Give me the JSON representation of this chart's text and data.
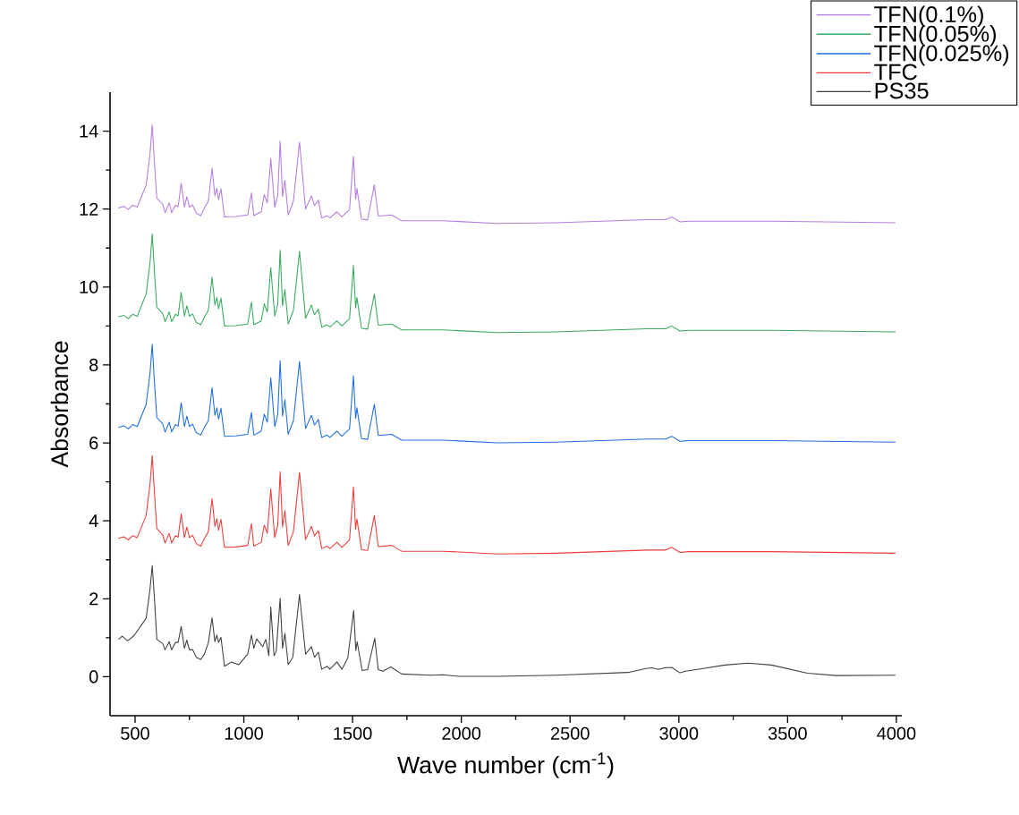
{
  "chart_data": {
    "type": "line",
    "xlabel": "Wave number (cm$^{-1}$)",
    "ylabel": "Absorbance",
    "xlim": [
      385,
      4025
    ],
    "ylim": [
      -1,
      15
    ],
    "xticks": [
      500,
      1000,
      1500,
      2000,
      2500,
      3000,
      3500,
      4000
    ],
    "yticks": [
      0,
      2,
      4,
      6,
      8,
      10,
      12,
      14
    ],
    "legend": "top right",
    "x": [
      424,
      448,
      469,
      489,
      510,
      551,
      569,
      579,
      589,
      600,
      627,
      638,
      657,
      668,
      686,
      698,
      712,
      727,
      738,
      750,
      764,
      782,
      802,
      819,
      837,
      854,
      867,
      876,
      884,
      895,
      911,
      963,
      1018,
      1035,
      1046,
      1080,
      1094,
      1108,
      1124,
      1142,
      1156,
      1167,
      1178,
      1189,
      1204,
      1228,
      1256,
      1284,
      1311,
      1325,
      1343,
      1358,
      1383,
      1396,
      1428,
      1451,
      1486,
      1504,
      1514,
      1520,
      1541,
      1569,
      1600,
      1618,
      1680,
      1726,
      1916,
      2166,
      2436,
      2856,
      2939,
      2967,
      3005,
      3046,
      3426,
      3996
    ],
    "series": [
      {
        "name": "TFN(0.1%)",
        "color": "#b57ee0",
        "values": [
          12.03,
          12.07,
          11.99,
          12.1,
          12.05,
          12.62,
          13.43,
          14.16,
          13.2,
          12.28,
          12.12,
          11.91,
          12.16,
          11.91,
          12.1,
          12.06,
          12.66,
          12.05,
          12.32,
          12.05,
          12.11,
          11.89,
          11.83,
          12.03,
          12.2,
          13.05,
          12.34,
          12.53,
          12.24,
          12.52,
          11.8,
          11.81,
          11.85,
          12.41,
          11.83,
          11.93,
          12.37,
          12.16,
          13.3,
          12.05,
          12.36,
          13.74,
          12.32,
          12.74,
          11.85,
          12.2,
          13.72,
          12.0,
          12.34,
          12.09,
          12.23,
          11.77,
          11.83,
          11.77,
          11.93,
          11.8,
          11.99,
          13.35,
          12.26,
          12.53,
          11.74,
          11.72,
          12.62,
          11.82,
          11.85,
          11.7,
          11.7,
          11.63,
          11.65,
          11.73,
          11.73,
          11.8,
          11.67,
          11.69,
          11.69,
          11.65
        ]
      },
      {
        "name": "TFN(0.05%)",
        "color": "#3aaa5f",
        "values": [
          9.23,
          9.27,
          9.19,
          9.3,
          9.25,
          9.82,
          10.63,
          11.36,
          10.4,
          9.48,
          9.32,
          9.11,
          9.36,
          9.11,
          9.3,
          9.26,
          9.86,
          9.25,
          9.52,
          9.25,
          9.31,
          9.09,
          9.03,
          9.23,
          9.4,
          10.25,
          9.54,
          9.73,
          9.44,
          9.72,
          9.0,
          9.01,
          9.05,
          9.61,
          9.03,
          9.13,
          9.57,
          9.36,
          10.5,
          9.25,
          9.56,
          10.94,
          9.52,
          9.94,
          9.05,
          9.4,
          10.92,
          9.2,
          9.54,
          9.29,
          9.43,
          8.97,
          9.03,
          8.97,
          9.13,
          9.0,
          9.19,
          10.55,
          9.46,
          9.73,
          8.94,
          8.92,
          9.82,
          9.02,
          9.05,
          8.9,
          8.9,
          8.83,
          8.85,
          8.93,
          8.93,
          9.0,
          8.87,
          8.89,
          8.89,
          8.85
        ]
      },
      {
        "name": "TFN(0.025%)",
        "color": "#1f6fe0",
        "values": [
          6.4,
          6.44,
          6.36,
          6.47,
          6.42,
          6.99,
          7.8,
          8.53,
          7.57,
          6.65,
          6.49,
          6.28,
          6.53,
          6.28,
          6.47,
          6.43,
          7.03,
          6.42,
          6.69,
          6.42,
          6.48,
          6.26,
          6.2,
          6.4,
          6.57,
          7.42,
          6.71,
          6.9,
          6.61,
          6.89,
          6.17,
          6.18,
          6.22,
          6.78,
          6.2,
          6.3,
          6.74,
          6.53,
          7.67,
          6.42,
          6.73,
          8.11,
          6.69,
          7.11,
          6.22,
          6.57,
          8.09,
          6.37,
          6.71,
          6.46,
          6.6,
          6.14,
          6.2,
          6.14,
          6.3,
          6.17,
          6.36,
          7.72,
          6.63,
          6.9,
          6.11,
          6.09,
          6.99,
          6.19,
          6.22,
          6.07,
          6.07,
          6.0,
          6.02,
          6.1,
          6.1,
          6.17,
          6.04,
          6.06,
          6.06,
          6.02
        ]
      },
      {
        "name": "TFC",
        "color": "#f03c3c",
        "values": [
          3.55,
          3.59,
          3.51,
          3.62,
          3.57,
          4.14,
          4.95,
          5.68,
          4.72,
          3.8,
          3.64,
          3.43,
          3.68,
          3.43,
          3.62,
          3.58,
          4.18,
          3.57,
          3.84,
          3.57,
          3.63,
          3.41,
          3.35,
          3.55,
          3.72,
          4.57,
          3.86,
          4.05,
          3.76,
          4.04,
          3.32,
          3.33,
          3.37,
          3.93,
          3.35,
          3.45,
          3.89,
          3.68,
          4.82,
          3.57,
          3.88,
          5.26,
          3.84,
          4.26,
          3.37,
          3.72,
          5.24,
          3.52,
          3.86,
          3.61,
          3.75,
          3.29,
          3.35,
          3.29,
          3.45,
          3.32,
          3.51,
          4.87,
          3.78,
          4.05,
          3.26,
          3.24,
          4.14,
          3.34,
          3.37,
          3.22,
          3.22,
          3.15,
          3.17,
          3.25,
          3.25,
          3.32,
          3.19,
          3.21,
          3.21,
          3.17
        ]
      },
      {
        "name": "PS35",
        "color": "#404040",
        "x": [
          424,
          441,
          466,
          496,
          551,
          569,
          579,
          589,
          600,
          627,
          638,
          657,
          668,
          686,
          698,
          712,
          727,
          738,
          750,
          764,
          782,
          802,
          819,
          837,
          854,
          867,
          876,
          884,
          895,
          911,
          943,
          977,
          1018,
          1035,
          1046,
          1059,
          1087,
          1101,
          1115,
          1124,
          1139,
          1149,
          1167,
          1178,
          1189,
          1204,
          1225,
          1256,
          1284,
          1311,
          1325,
          1343,
          1358,
          1383,
          1396,
          1428,
          1451,
          1478,
          1505,
          1515,
          1521,
          1544,
          1569,
          1602,
          1618,
          1639,
          1676,
          1726,
          1858,
          1916,
          1990,
          2166,
          2436,
          2766,
          2848,
          2876,
          2906,
          2935,
          2967,
          3005,
          3030,
          3112,
          3211,
          3319,
          3426,
          3591,
          3723,
          3996
        ],
        "values": [
          0.96,
          1.04,
          0.92,
          1.06,
          1.5,
          2.26,
          2.85,
          2.03,
          0.96,
          0.85,
          0.69,
          0.9,
          0.69,
          0.88,
          0.88,
          1.29,
          0.73,
          0.94,
          0.69,
          0.7,
          0.5,
          0.44,
          0.58,
          0.88,
          1.51,
          0.9,
          1.07,
          0.88,
          1.01,
          0.27,
          0.38,
          0.31,
          0.58,
          1.07,
          0.73,
          0.97,
          0.77,
          0.96,
          0.54,
          1.79,
          0.54,
          0.65,
          2.01,
          0.73,
          1.11,
          0.31,
          0.5,
          2.11,
          0.58,
          0.77,
          0.5,
          0.63,
          0.19,
          0.27,
          0.19,
          0.38,
          0.19,
          0.48,
          1.7,
          0.67,
          0.9,
          0.16,
          0.18,
          0.99,
          0.18,
          0.14,
          0.25,
          0.07,
          0.04,
          0.05,
          0.01,
          0.01,
          0.04,
          0.11,
          0.21,
          0.23,
          0.19,
          0.23,
          0.24,
          0.1,
          0.14,
          0.21,
          0.3,
          0.35,
          0.3,
          0.09,
          0.03,
          0.04
        ]
      }
    ]
  }
}
